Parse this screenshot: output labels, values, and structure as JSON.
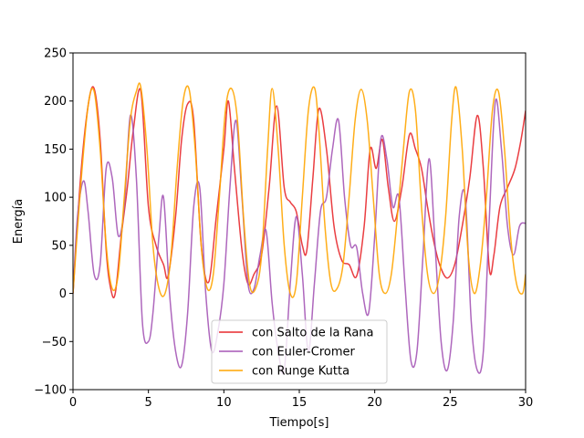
{
  "chart_data": {
    "type": "line",
    "title": "",
    "xlabel": "Tiempo[s]",
    "ylabel": "Energía",
    "xlim": [
      0,
      30
    ],
    "ylim": [
      -100,
      250
    ],
    "xticks": [
      0,
      5,
      10,
      15,
      20,
      25,
      30
    ],
    "yticks": [
      -100,
      -50,
      0,
      50,
      100,
      150,
      200,
      250
    ],
    "grid": false,
    "legend_position": "bottom-center",
    "series": [
      {
        "name": "con Salto de la Rana",
        "color": "#e8292d",
        "x": [
          0,
          0.5,
          1.0,
          1.4,
          1.8,
          2.2,
          2.5,
          2.8,
          3.2,
          3.6,
          4.0,
          4.5,
          5.0,
          5.5,
          6.0,
          6.3,
          6.8,
          7.2,
          7.6,
          8.0,
          8.5,
          9.0,
          9.5,
          10.0,
          10.3,
          10.7,
          11.2,
          11.6,
          12.0,
          12.5,
          13.0,
          13.5,
          14.0,
          14.4,
          14.8,
          15.2,
          15.5,
          15.9,
          16.3,
          16.8,
          17.3,
          17.8,
          18.3,
          18.8,
          19.3,
          19.7,
          20.1,
          20.5,
          20.9,
          21.3,
          21.8,
          22.3,
          22.7,
          23.1,
          23.5,
          23.9,
          24.3,
          24.8,
          25.3,
          25.8,
          26.3,
          26.8,
          27.2,
          27.6,
          27.9,
          28.3,
          28.8,
          29.3,
          29.7,
          30.0
        ],
        "y": [
          0,
          120,
          195,
          213,
          160,
          45,
          5,
          0,
          60,
          110,
          170,
          210,
          90,
          50,
          30,
          18,
          80,
          160,
          197,
          180,
          50,
          12,
          80,
          150,
          200,
          130,
          45,
          10,
          20,
          40,
          110,
          195,
          110,
          95,
          85,
          50,
          45,
          120,
          192,
          150,
          70,
          35,
          30,
          18,
          70,
          150,
          130,
          160,
          110,
          75,
          110,
          165,
          150,
          130,
          90,
          55,
          30,
          16,
          30,
          70,
          120,
          185,
          130,
          25,
          40,
          90,
          110,
          130,
          160,
          190
        ]
      },
      {
        "name": "con Euler-Cromer",
        "color": "#a557b6",
        "x": [
          0,
          0.3,
          0.7,
          1.0,
          1.4,
          1.8,
          2.2,
          2.6,
          3.0,
          3.4,
          3.8,
          4.2,
          4.6,
          5.0,
          5.3,
          5.7,
          6.0,
          6.4,
          6.8,
          7.2,
          7.6,
          8.0,
          8.4,
          8.8,
          9.2,
          9.6,
          10.0,
          10.4,
          10.8,
          11.2,
          11.6,
          12.0,
          12.4,
          12.8,
          13.2,
          13.6,
          14.0,
          14.4,
          14.8,
          15.2,
          15.6,
          16.0,
          16.4,
          16.8,
          17.2,
          17.6,
          18.0,
          18.4,
          18.8,
          19.2,
          19.6,
          20.0,
          20.4,
          20.8,
          21.2,
          21.6,
          22.0,
          22.4,
          22.8,
          23.2,
          23.6,
          24.0,
          24.4,
          24.8,
          25.2,
          25.6,
          26.0,
          26.4,
          26.8,
          27.2,
          27.6,
          28.0,
          28.4,
          28.8,
          29.2,
          29.6,
          30.0
        ],
        "y": [
          0,
          80,
          117,
          85,
          20,
          30,
          130,
          120,
          60,
          90,
          185,
          120,
          -30,
          -50,
          -20,
          60,
          100,
          0,
          -60,
          -75,
          -20,
          90,
          110,
          0,
          -60,
          -40,
          10,
          110,
          180,
          100,
          10,
          5,
          40,
          65,
          -10,
          -60,
          -80,
          10,
          80,
          20,
          -60,
          10,
          85,
          100,
          150,
          180,
          100,
          50,
          48,
          0,
          -20,
          60,
          160,
          140,
          90,
          100,
          10,
          -70,
          -60,
          40,
          140,
          50,
          -50,
          -80,
          -30,
          80,
          100,
          -30,
          -80,
          -60,
          80,
          200,
          150,
          70,
          40,
          70,
          73
        ]
      },
      {
        "name": "con Runge Kutta",
        "color": "#ffa500",
        "x": [
          0,
          0.5,
          1.0,
          1.4,
          1.8,
          2.2,
          2.6,
          3.0,
          3.4,
          3.8,
          4.2,
          4.5,
          4.9,
          5.3,
          5.7,
          6.1,
          6.5,
          6.9,
          7.3,
          7.7,
          8.1,
          8.5,
          8.9,
          9.3,
          9.7,
          10.1,
          10.5,
          10.9,
          11.3,
          11.7,
          12.1,
          12.5,
          12.9,
          13.2,
          13.6,
          14.0,
          14.4,
          14.8,
          15.2,
          15.6,
          16.0,
          16.3,
          16.7,
          17.1,
          17.5,
          17.9,
          18.3,
          18.7,
          19.1,
          19.5,
          19.9,
          20.3,
          20.7,
          21.1,
          21.5,
          21.9,
          22.3,
          22.7,
          23.1,
          23.5,
          23.9,
          24.3,
          24.7,
          25.1,
          25.4,
          25.8,
          26.2,
          26.6,
          27.0,
          27.4,
          27.8,
          28.2,
          28.6,
          29.0,
          29.4,
          29.8,
          30.0
        ],
        "y": [
          0,
          110,
          195,
          210,
          150,
          50,
          5,
          20,
          100,
          180,
          210,
          214,
          150,
          50,
          5,
          0,
          40,
          130,
          200,
          212,
          150,
          50,
          5,
          20,
          100,
          190,
          213,
          180,
          80,
          10,
          5,
          40,
          150,
          213,
          150,
          50,
          0,
          10,
          100,
          190,
          214,
          170,
          70,
          10,
          5,
          30,
          100,
          180,
          212,
          180,
          100,
          20,
          0,
          20,
          80,
          150,
          210,
          190,
          90,
          20,
          0,
          20,
          80,
          180,
          214,
          150,
          40,
          0,
          30,
          100,
          190,
          210,
          150,
          60,
          10,
          0,
          20
        ]
      }
    ]
  }
}
